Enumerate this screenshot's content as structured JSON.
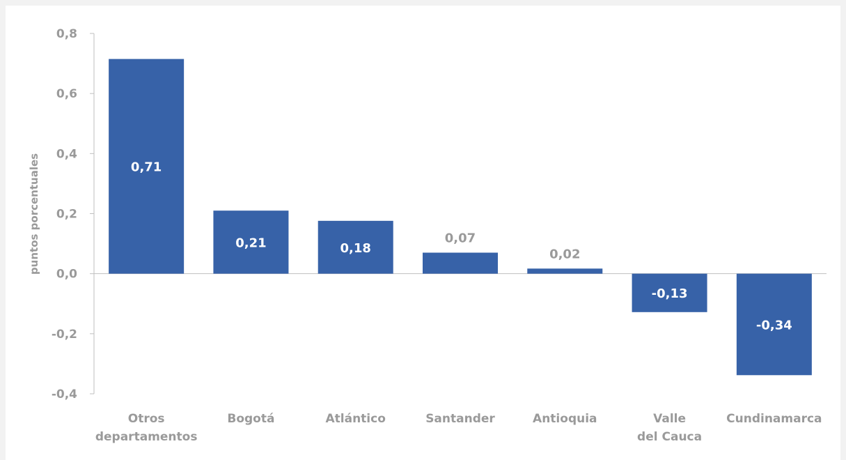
{
  "chart_data": {
    "type": "bar",
    "ylabel": "puntos porcentuales",
    "ylim": [
      -0.4,
      0.8
    ],
    "yticks": [
      0.8,
      0.6,
      0.4,
      0.2,
      0.0,
      -0.2,
      -0.4
    ],
    "ytick_labels": [
      "0,8",
      "0,6",
      "0,4",
      "0,2",
      "0,0",
      "-0,2",
      "-0,4"
    ],
    "categories": [
      [
        "Otros",
        "departamentos"
      ],
      [
        "Bogotá"
      ],
      [
        "Atlántico"
      ],
      [
        "Santander"
      ],
      [
        "Antioquia"
      ],
      [
        "Valle",
        "del Cauca"
      ],
      [
        "Cundinamarca"
      ]
    ],
    "values": [
      0.715,
      0.21,
      0.176,
      0.07,
      0.017,
      -0.128,
      -0.338
    ],
    "data_labels": [
      "0,71",
      "0,21",
      "0,18",
      "0,07",
      "0,02",
      "-0,13",
      "-0,34"
    ],
    "label_position": [
      "inside",
      "inside",
      "inside",
      "outside",
      "outside",
      "inside",
      "inside"
    ],
    "bar_color": "#3762a8",
    "grid": false,
    "legend": "none"
  }
}
